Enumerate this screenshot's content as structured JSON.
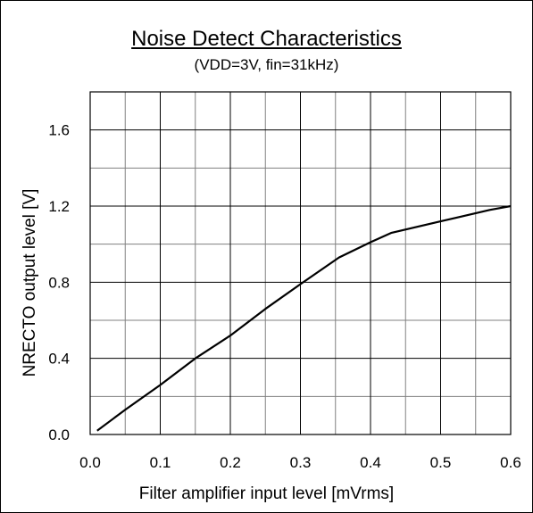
{
  "chart_data": {
    "type": "line",
    "title": "Noise Detect Characteristics",
    "subtitle": "(VDD=3V, fin=31kHz)",
    "xlabel": "Filter amplifier input level [mVrms]",
    "ylabel": "NRECTO output level [V]",
    "xlim": [
      0.0,
      0.6
    ],
    "ylim": [
      0.0,
      1.8
    ],
    "x_ticks": [
      "0.0",
      "0.1",
      "0.2",
      "0.3",
      "0.4",
      "0.5",
      "0.6"
    ],
    "y_ticks": [
      "0.0",
      "0.4",
      "0.8",
      "1.2",
      "1.6"
    ],
    "grid": true,
    "legend": "none",
    "line_color": "#000000",
    "grid_color": "#808080",
    "series": [
      {
        "x": [
          0.01,
          0.05,
          0.1,
          0.15,
          0.2,
          0.25,
          0.3,
          0.355,
          0.4,
          0.43,
          0.5,
          0.57,
          0.6
        ],
        "y": [
          0.02,
          0.13,
          0.26,
          0.4,
          0.52,
          0.66,
          0.79,
          0.93,
          1.01,
          1.06,
          1.12,
          1.18,
          1.2
        ]
      }
    ]
  }
}
